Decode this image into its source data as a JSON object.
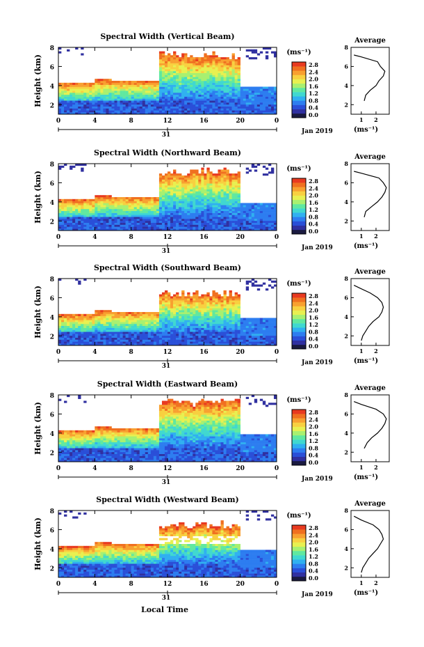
{
  "figure": {
    "xlabel": "Local Time",
    "date_label": "Jan 2019",
    "day_label": "31",
    "ylabel": "Height (km)",
    "colorbar_unit": "(ms⁻¹)",
    "avg_title": "Average",
    "avg_xlabel": "(ms⁻¹)"
  },
  "colorbar": {
    "ticks": [
      "2.8",
      "2.4",
      "2.0",
      "1.6",
      "1.2",
      "0.8",
      "0.4",
      "0.0"
    ],
    "colors": [
      "#1a1a40",
      "#3030a0",
      "#2a4fd8",
      "#2d7df0",
      "#30b0f0",
      "#40d8d0",
      "#60e8a0",
      "#a8f070",
      "#e8f050",
      "#f8d040",
      "#f8a030",
      "#f07020",
      "#e83a20"
    ]
  },
  "chart_data": [
    {
      "type": "heatmap",
      "title": "Spectral Width (Vertical Beam)",
      "x_ticks": [
        "0",
        "4",
        "8",
        "12",
        "16",
        "20",
        "0"
      ],
      "y_ticks": [
        "2",
        "4",
        "6",
        "8"
      ],
      "xlim": [
        0,
        24
      ],
      "ylim": [
        1,
        8
      ],
      "avg_x_ticks": [
        "1",
        "2"
      ],
      "avg_y_ticks": [
        "2",
        "4",
        "6",
        "8"
      ],
      "profile_height": [
        2.4,
        3,
        3.5,
        4,
        4.5,
        5,
        5.5,
        6,
        6.5,
        7,
        7.2
      ],
      "profile_value": [
        1.2,
        1.3,
        1.6,
        2.0,
        2.2,
        2.5,
        2.6,
        2.3,
        2.1,
        1.0,
        0.5
      ]
    },
    {
      "type": "heatmap",
      "title": "Spectral Width (Northward Beam)",
      "x_ticks": [
        "0",
        "4",
        "8",
        "12",
        "16",
        "20",
        "0"
      ],
      "y_ticks": [
        "2",
        "4",
        "6",
        "8"
      ],
      "xlim": [
        0,
        24
      ],
      "ylim": [
        1,
        8
      ],
      "avg_x_ticks": [
        "1",
        "2"
      ],
      "avg_y_ticks": [
        "2",
        "4",
        "6",
        "8"
      ],
      "profile_height": [
        2.4,
        3,
        3.5,
        4,
        4.5,
        5,
        5.5,
        6,
        6.5,
        7,
        7.2
      ],
      "profile_value": [
        1.2,
        1.3,
        1.7,
        2.1,
        2.4,
        2.6,
        2.7,
        2.5,
        2.2,
        1.0,
        0.5
      ]
    },
    {
      "type": "heatmap",
      "title": "Spectral Width (Southward Beam)",
      "x_ticks": [
        "0",
        "4",
        "8",
        "12",
        "16",
        "20",
        "0"
      ],
      "y_ticks": [
        "2",
        "4",
        "6",
        "8"
      ],
      "xlim": [
        0,
        24
      ],
      "ylim": [
        1,
        8
      ],
      "avg_x_ticks": [
        "1",
        "2"
      ],
      "avg_y_ticks": [
        "2",
        "4",
        "6",
        "8"
      ],
      "profile_height": [
        1.5,
        2,
        2.5,
        3,
        3.5,
        4,
        4.5,
        5,
        5.5,
        6,
        6.5,
        7,
        7.3
      ],
      "profile_value": [
        1.0,
        1.1,
        1.3,
        1.5,
        1.8,
        2.2,
        2.4,
        2.5,
        2.4,
        2.1,
        1.6,
        0.9,
        0.5
      ]
    },
    {
      "type": "heatmap",
      "title": "Spectral Width (Eastward Beam)",
      "x_ticks": [
        "0",
        "4",
        "8",
        "12",
        "16",
        "20",
        "0"
      ],
      "y_ticks": [
        "2",
        "4",
        "6",
        "8"
      ],
      "xlim": [
        0,
        24
      ],
      "ylim": [
        1,
        8
      ],
      "avg_x_ticks": [
        "1",
        "2"
      ],
      "avg_y_ticks": [
        "2",
        "4",
        "6",
        "8"
      ],
      "profile_height": [
        2.4,
        3,
        3.5,
        4,
        4.5,
        5,
        5.5,
        6,
        6.5,
        7,
        7.3
      ],
      "profile_value": [
        1.2,
        1.4,
        1.7,
        2.1,
        2.4,
        2.6,
        2.7,
        2.5,
        2.0,
        1.0,
        0.5
      ]
    },
    {
      "type": "heatmap",
      "title": "Spectral Width (Westward Beam)",
      "x_ticks": [
        "0",
        "4",
        "8",
        "12",
        "16",
        "20",
        "0"
      ],
      "y_ticks": [
        "2",
        "4",
        "6",
        "8"
      ],
      "xlim": [
        0,
        24
      ],
      "ylim": [
        1,
        8
      ],
      "avg_x_ticks": [
        "1",
        "2"
      ],
      "avg_y_ticks": [
        "2",
        "4",
        "6",
        "8"
      ],
      "profile_height": [
        1.5,
        2,
        2.5,
        3,
        3.5,
        4,
        4.5,
        5,
        5.5,
        6,
        6.5,
        7,
        7.4
      ],
      "profile_value": [
        1.0,
        1.1,
        1.3,
        1.5,
        1.8,
        2.1,
        2.3,
        2.5,
        2.4,
        2.2,
        1.8,
        1.0,
        0.5
      ]
    }
  ]
}
